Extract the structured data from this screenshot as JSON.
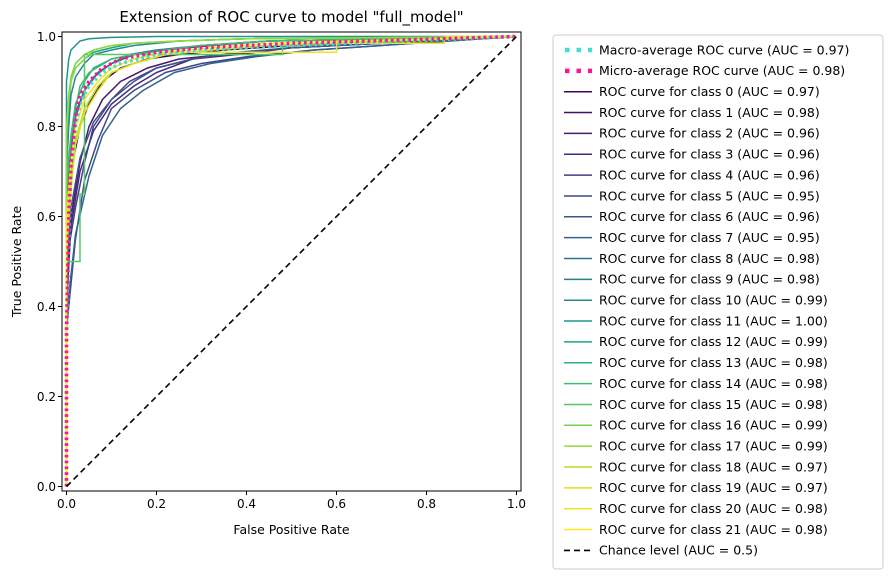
{
  "chart_data": {
    "type": "line",
    "title": "Extension of ROC curve to model \"full_model\"",
    "xlabel": "False Positive Rate",
    "ylabel": "True Positive Rate",
    "xlim": [
      -0.01,
      1.01
    ],
    "ylim": [
      -0.01,
      1.01
    ],
    "xticks": [
      0.0,
      0.2,
      0.4,
      0.6,
      0.8,
      1.0
    ],
    "yticks": [
      0.0,
      0.2,
      0.4,
      0.6,
      0.8,
      1.0
    ],
    "xtick_labels": [
      "0.0",
      "0.2",
      "0.4",
      "0.6",
      "0.8",
      "1.0"
    ],
    "ytick_labels": [
      "0.0",
      "0.2",
      "0.4",
      "0.6",
      "0.8",
      "1.0"
    ],
    "grid": false,
    "legend_position": "outside-right",
    "series": [
      {
        "name": "Macro-average ROC curve (AUC = 0.97)",
        "color": "#40e0d0",
        "style": "dotted",
        "x": [
          0.0,
          0.0,
          0.005,
          0.01,
          0.02,
          0.03,
          0.05,
          0.08,
          0.12,
          0.2,
          0.3,
          0.5,
          1.0
        ],
        "y": [
          0.0,
          0.3,
          0.55,
          0.7,
          0.8,
          0.85,
          0.89,
          0.92,
          0.94,
          0.96,
          0.97,
          0.98,
          1.0
        ]
      },
      {
        "name": "Micro-average ROC curve (AUC = 0.98)",
        "color": "#ff1493",
        "style": "dotted",
        "x": [
          0.0,
          0.0,
          0.005,
          0.01,
          0.02,
          0.03,
          0.05,
          0.08,
          0.12,
          0.2,
          0.3,
          0.5,
          1.0
        ],
        "y": [
          0.0,
          0.35,
          0.6,
          0.72,
          0.82,
          0.87,
          0.9,
          0.93,
          0.95,
          0.965,
          0.975,
          0.985,
          1.0
        ]
      },
      {
        "name": "ROC curve for class 0 (AUC = 0.97)",
        "color": "#440154",
        "x": [
          0.0,
          0.0,
          0.01,
          0.03,
          0.05,
          0.08,
          0.12,
          0.18,
          0.25,
          0.35,
          0.5,
          1.0
        ],
        "y": [
          0.0,
          0.55,
          0.7,
          0.8,
          0.85,
          0.9,
          0.93,
          0.95,
          0.96,
          0.97,
          0.98,
          1.0
        ]
      },
      {
        "name": "ROC curve for class 1 (AUC = 0.98)",
        "color": "#470e61",
        "x": [
          0.0,
          0.0,
          0.01,
          0.02,
          0.04,
          0.07,
          0.1,
          0.15,
          0.22,
          0.32,
          0.45,
          1.0
        ],
        "y": [
          0.0,
          0.65,
          0.75,
          0.83,
          0.88,
          0.92,
          0.94,
          0.96,
          0.97,
          0.98,
          0.99,
          1.0
        ]
      },
      {
        "name": "ROC curve for class 2 (AUC = 0.96)",
        "color": "#481b6d",
        "x": [
          0.0,
          0.0,
          0.01,
          0.03,
          0.05,
          0.08,
          0.12,
          0.18,
          0.25,
          0.35,
          0.5,
          1.0
        ],
        "y": [
          0.0,
          0.45,
          0.6,
          0.72,
          0.8,
          0.86,
          0.9,
          0.93,
          0.95,
          0.96,
          0.975,
          1.0
        ]
      },
      {
        "name": "ROC curve for class 3 (AUC = 0.96)",
        "color": "#46277a",
        "x": [
          0.0,
          0.0,
          0.01,
          0.03,
          0.06,
          0.1,
          0.15,
          0.2,
          0.28,
          0.38,
          0.5,
          1.0
        ],
        "y": [
          0.0,
          0.4,
          0.58,
          0.7,
          0.79,
          0.85,
          0.89,
          0.92,
          0.95,
          0.96,
          0.975,
          1.0
        ]
      },
      {
        "name": "ROC curve for class 4 (AUC = 0.96)",
        "color": "#433e85",
        "x": [
          0.0,
          0.0,
          0.02,
          0.04,
          0.06,
          0.1,
          0.14,
          0.2,
          0.28,
          0.35,
          0.5,
          1.0
        ],
        "y": [
          0.0,
          0.5,
          0.62,
          0.72,
          0.8,
          0.86,
          0.9,
          0.93,
          0.95,
          0.96,
          0.975,
          1.0
        ]
      },
      {
        "name": "ROC curve for class 5 (AUC = 0.95)",
        "color": "#3e4989",
        "x": [
          0.0,
          0.0,
          0.02,
          0.04,
          0.07,
          0.1,
          0.15,
          0.22,
          0.3,
          0.4,
          0.55,
          1.0
        ],
        "y": [
          0.0,
          0.35,
          0.55,
          0.68,
          0.77,
          0.84,
          0.88,
          0.92,
          0.94,
          0.955,
          0.97,
          1.0
        ]
      },
      {
        "name": "ROC curve for class 6 (AUC = 0.96)",
        "color": "#38588c",
        "x": [
          0.0,
          0.0,
          0.01,
          0.03,
          0.06,
          0.1,
          0.15,
          0.2,
          0.28,
          0.38,
          0.5,
          1.0
        ],
        "y": [
          0.0,
          0.48,
          0.62,
          0.73,
          0.81,
          0.86,
          0.9,
          0.93,
          0.95,
          0.965,
          0.975,
          1.0
        ]
      },
      {
        "name": "ROC curve for class 7 (AUC = 0.95)",
        "color": "#33638d",
        "x": [
          0.0,
          0.0,
          0.02,
          0.05,
          0.08,
          0.12,
          0.17,
          0.24,
          0.32,
          0.42,
          0.55,
          1.0
        ],
        "y": [
          0.0,
          0.38,
          0.56,
          0.69,
          0.78,
          0.84,
          0.88,
          0.92,
          0.94,
          0.955,
          0.97,
          1.0
        ]
      },
      {
        "name": "ROC curve for class 8 (AUC = 0.98)",
        "color": "#2c728e",
        "x": [
          0.0,
          0.0,
          0.01,
          0.02,
          0.04,
          0.07,
          0.1,
          0.15,
          0.22,
          0.3,
          0.45,
          1.0
        ],
        "y": [
          0.0,
          0.62,
          0.74,
          0.83,
          0.88,
          0.92,
          0.94,
          0.96,
          0.97,
          0.98,
          0.99,
          1.0
        ]
      },
      {
        "name": "ROC curve for class 9 (AUC = 0.98)",
        "color": "#287d8e",
        "x": [
          0.0,
          0.0,
          0.01,
          0.02,
          0.04,
          0.06,
          0.1,
          0.14,
          0.2,
          0.3,
          0.45,
          1.0
        ],
        "y": [
          0.0,
          0.6,
          0.73,
          0.82,
          0.88,
          0.91,
          0.94,
          0.96,
          0.97,
          0.98,
          0.99,
          1.0
        ]
      },
      {
        "name": "ROC curve for class 10 (AUC = 0.99)",
        "color": "#238a8d",
        "x": [
          0.0,
          0.0,
          0.005,
          0.01,
          0.02,
          0.04,
          0.06,
          0.1,
          0.15,
          0.25,
          0.4,
          1.0
        ],
        "y": [
          0.0,
          0.7,
          0.8,
          0.87,
          0.91,
          0.94,
          0.96,
          0.97,
          0.98,
          0.99,
          0.995,
          1.0
        ]
      },
      {
        "name": "ROC curve for class 11 (AUC = 1.00)",
        "color": "#1f968b",
        "x": [
          0.0,
          0.0,
          0.005,
          0.01,
          0.02,
          0.03,
          0.05,
          0.1,
          0.2,
          1.0
        ],
        "y": [
          0.0,
          0.9,
          0.95,
          0.97,
          0.98,
          0.99,
          0.995,
          0.998,
          1.0,
          1.0
        ]
      },
      {
        "name": "ROC curve for class 12 (AUC = 0.99)",
        "color": "#20a386",
        "x": [
          0.0,
          0.0,
          0.005,
          0.01,
          0.02,
          0.04,
          0.06,
          0.1,
          0.15,
          0.25,
          0.4,
          1.0
        ],
        "y": [
          0.0,
          0.75,
          0.84,
          0.9,
          0.93,
          0.95,
          0.965,
          0.975,
          0.985,
          0.99,
          0.995,
          1.0
        ]
      },
      {
        "name": "ROC curve for class 13 (AUC = 0.98)",
        "color": "#29af7f",
        "x": [
          0.0,
          0.0,
          0.01,
          0.02,
          0.04,
          0.06,
          0.1,
          0.15,
          0.22,
          0.3,
          0.45,
          1.0
        ],
        "y": [
          0.0,
          0.68,
          0.78,
          0.85,
          0.9,
          0.93,
          0.95,
          0.96,
          0.97,
          0.98,
          0.99,
          1.0
        ]
      },
      {
        "name": "ROC curve for class 14 (AUC = 0.98)",
        "color": "#3dbc74",
        "x": [
          0.0,
          0.0,
          0.01,
          0.02,
          0.03,
          0.05,
          0.1,
          0.15,
          0.22,
          0.3,
          0.45,
          1.0
        ],
        "y": [
          0.0,
          0.66,
          0.77,
          0.84,
          0.89,
          0.92,
          0.95,
          0.96,
          0.97,
          0.98,
          0.99,
          1.0
        ]
      },
      {
        "name": "ROC curve for class 15 (AUC = 0.98)",
        "color": "#56c667",
        "x": [
          0.0,
          0.0,
          0.01,
          0.01,
          0.03,
          0.03,
          0.04,
          0.04,
          0.48,
          0.48,
          1.0
        ],
        "y": [
          0.0,
          0.5,
          0.5,
          0.5,
          0.5,
          0.65,
          0.65,
          0.96,
          0.96,
          0.98,
          1.0
        ]
      },
      {
        "name": "ROC curve for class 16 (AUC = 0.99)",
        "color": "#75d054",
        "x": [
          0.0,
          0.0,
          0.005,
          0.01,
          0.02,
          0.04,
          0.06,
          0.1,
          0.15,
          0.25,
          0.4,
          1.0
        ],
        "y": [
          0.0,
          0.8,
          0.87,
          0.91,
          0.94,
          0.96,
          0.97,
          0.98,
          0.985,
          0.99,
          0.995,
          1.0
        ]
      },
      {
        "name": "ROC curve for class 17 (AUC = 0.99)",
        "color": "#95d840",
        "x": [
          0.0,
          0.0,
          0.005,
          0.01,
          0.02,
          0.04,
          0.06,
          0.1,
          0.15,
          0.25,
          0.4,
          1.0
        ],
        "y": [
          0.0,
          0.78,
          0.86,
          0.9,
          0.93,
          0.95,
          0.97,
          0.98,
          0.985,
          0.99,
          0.995,
          1.0
        ]
      },
      {
        "name": "ROC curve for class 18 (AUC = 0.97)",
        "color": "#bade28",
        "x": [
          0.0,
          0.0,
          0.01,
          0.02,
          0.04,
          0.07,
          0.1,
          0.15,
          0.22,
          0.32,
          0.45,
          1.0
        ],
        "y": [
          0.0,
          0.55,
          0.68,
          0.77,
          0.84,
          0.89,
          0.92,
          0.94,
          0.96,
          0.97,
          0.98,
          1.0
        ]
      },
      {
        "name": "ROC curve for class 19 (AUC = 0.97)",
        "color": "#dde318",
        "x": [
          0.0,
          0.0,
          0.01,
          0.02,
          0.04,
          0.07,
          0.1,
          0.15,
          0.22,
          0.32,
          0.45,
          1.0
        ],
        "y": [
          0.0,
          0.52,
          0.66,
          0.76,
          0.83,
          0.88,
          0.92,
          0.94,
          0.96,
          0.97,
          0.98,
          1.0
        ]
      },
      {
        "name": "ROC curve for class 20 (AUC = 0.98)",
        "color": "#f2e51d",
        "x": [
          0.0,
          0.0,
          0.01,
          0.02,
          0.04,
          0.07,
          0.1,
          0.15,
          0.22,
          0.6,
          0.6,
          0.84,
          0.84,
          1.0
        ],
        "y": [
          0.0,
          0.6,
          0.72,
          0.8,
          0.86,
          0.9,
          0.93,
          0.95,
          0.965,
          0.965,
          0.985,
          0.985,
          1.0,
          1.0
        ]
      },
      {
        "name": "ROC curve for class 21 (AUC = 0.98)",
        "color": "#fde725",
        "x": [
          0.0,
          0.0,
          0.01,
          0.02,
          0.04,
          0.07,
          0.1,
          0.15,
          0.22,
          0.32,
          0.45,
          1.0
        ],
        "y": [
          0.0,
          0.58,
          0.72,
          0.8,
          0.86,
          0.9,
          0.93,
          0.95,
          0.965,
          0.975,
          0.985,
          1.0
        ]
      },
      {
        "name": "Chance level (AUC = 0.5)",
        "color": "#000000",
        "style": "dashed",
        "x": [
          0.0,
          1.0
        ],
        "y": [
          0.0,
          1.0
        ]
      }
    ]
  }
}
